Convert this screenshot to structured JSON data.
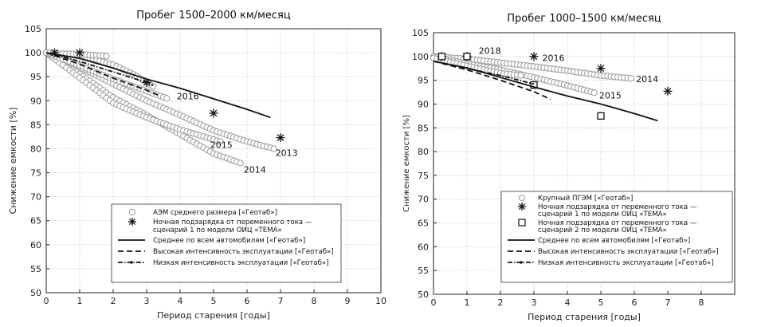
{
  "chart_data": [
    {
      "type": "scatter",
      "title": "Пробег 1500–2000 км/месяц",
      "xlabel": "Период старения [годы]",
      "ylabel": "Снижение емкости [%]",
      "xlim": [
        0,
        10
      ],
      "ylim": [
        50,
        105
      ],
      "xticks": [
        "0",
        "1",
        "2",
        "3",
        "4",
        "5",
        "6",
        "7",
        "8",
        "9",
        "10"
      ],
      "yticks": [
        "50",
        "55",
        "60",
        "65",
        "70",
        "75",
        "80",
        "85",
        "90",
        "95",
        "100",
        "105"
      ],
      "grid": true,
      "legend_position": "bottom-right",
      "legend": [
        {
          "label": "АЭМ среднего размера [«Геотаб»]",
          "marker": "circle"
        },
        {
          "label": "Ночная подзарядка от переменного тока —",
          "marker": "star"
        },
        {
          "label": "сценарий 1 по модели ОИЦ «ТЕМА»",
          "marker": "none"
        },
        {
          "label": "Среднее по всем автомобилям [«Геотаб»]",
          "marker": "solid"
        },
        {
          "label": "Высокая интенсивность эксплуатации [«Геотаб»]",
          "marker": "dash"
        },
        {
          "label": "Низкая интенсивность эксплуатации [«Геотаб»]",
          "marker": "dashdot"
        }
      ],
      "series": [
        {
          "name": "АЭМ среднего размера [«Геотаб»]",
          "style": "circles",
          "tracks": [
            {
              "x": [
                0,
                1.0,
                2.0,
                3.0,
                4.0,
                5.0,
                5.8
              ],
              "y": [
                100,
                95.6,
                90.7,
                87.0,
                83.0,
                79.0,
                77.0
              ]
            },
            {
              "x": [
                0,
                1.0,
                2.0,
                3.0,
                4.0,
                5.0,
                6.0,
                6.8
              ],
              "y": [
                100,
                97.0,
                93.5,
                90.0,
                87.0,
                83.8,
                81.5,
                80.0
              ]
            },
            {
              "x": [
                0,
                1.0,
                2.0,
                3.0,
                4.0,
                5.2
              ],
              "y": [
                100,
                94.8,
                89.5,
                86.5,
                84.0,
                81.5
              ]
            },
            {
              "x": [
                0,
                1.0,
                2.0,
                3.0,
                3.6
              ],
              "y": [
                100,
                97.3,
                94.5,
                92.0,
                90.5
              ]
            },
            {
              "x": [
                0,
                1.0,
                2.0,
                2.6,
                3.2
              ],
              "y": [
                100,
                99.5,
                97.5,
                95.5,
                93.0
              ]
            },
            {
              "x": [
                0.5,
                1.0,
                1.8
              ],
              "y": [
                99.8,
                99.7,
                99.3
              ]
            }
          ]
        },
        {
          "name": "Ночная подзарядка от переменного тока — сценарий 1 по модели ОИЦ «ТЕМА»",
          "style": "stars",
          "x": [
            0.25,
            1,
            3,
            5,
            7
          ],
          "y": [
            100,
            100,
            93.8,
            87.4,
            82.3
          ]
        },
        {
          "name": "Среднее по всем автомобилям [«Геотаб»]",
          "style": "solid",
          "x": [
            0,
            1,
            2,
            3,
            4,
            5,
            6,
            6.7
          ],
          "y": [
            100,
            98.8,
            96.8,
            94.5,
            92.6,
            90.4,
            88.2,
            86.5
          ]
        },
        {
          "name": "Высокая интенсивность эксплуатации [«Геотаб»]",
          "style": "dash",
          "x": [
            0,
            1,
            2,
            3,
            3.4
          ],
          "y": [
            100,
            97.6,
            94.7,
            92.2,
            91.0
          ]
        },
        {
          "name": "Низкая интенсивность эксплуатации [«Геотаб»]",
          "style": "dashdot",
          "x": [
            0,
            1,
            2,
            3,
            3.2
          ],
          "y": [
            100,
            98.2,
            96.0,
            93.8,
            93.2
          ]
        }
      ],
      "annotations": [
        {
          "text": "2016",
          "x": 3.9,
          "y": 91.0
        },
        {
          "text": "2015",
          "x": 4.9,
          "y": 80.8
        },
        {
          "text": "2013",
          "x": 6.85,
          "y": 79.2
        },
        {
          "text": "2014",
          "x": 5.9,
          "y": 75.7
        }
      ]
    },
    {
      "type": "scatter",
      "title": "Пробег 1000–1500  км/месяц",
      "xlabel": "Период старения [годы]",
      "ylabel": "Снижение емкости [%]",
      "xlim": [
        0,
        9
      ],
      "ylim": [
        50,
        105
      ],
      "xticks": [
        "0",
        "1",
        "2",
        "3",
        "4",
        "5",
        "6",
        "7",
        "8"
      ],
      "yticks": [
        "50",
        "55",
        "60",
        "65",
        "70",
        "75",
        "80",
        "85",
        "90",
        "95",
        "100",
        "105"
      ],
      "grid": true,
      "legend_position": "bottom-right",
      "legend": [
        {
          "label": "Крупный ПГЭМ [«Геотаб»]",
          "marker": "circle"
        },
        {
          "label": "Ночная подзарядка от переменного тока —",
          "marker": "star"
        },
        {
          "label": "сценарий 1 по модели ОИЦ «ТЕМА»",
          "marker": "none"
        },
        {
          "label": "Ночная подзарядка от переменного тока —",
          "marker": "square"
        },
        {
          "label": "сценарий 2 по модели ОИЦ «ТЕМА»",
          "marker": "none"
        },
        {
          "label": "Среднее по всем автомобилям [«Геотаб»]",
          "marker": "solid"
        },
        {
          "label": "Высокая интенсивность эксплуатации [«Геотаб»]",
          "marker": "dash"
        },
        {
          "label": "Низкая интенсивность эксплуатации [«Геотаб»]",
          "marker": "dashdot"
        }
      ],
      "series": [
        {
          "name": "Крупный ПГЭМ [«Геотаб»]",
          "style": "circles",
          "tracks": [
            {
              "x": [
                0,
                1.0,
                2.0,
                3.0,
                4.0,
                5.0,
                5.9
              ],
              "y": [
                100,
                99.5,
                98.7,
                97.9,
                97.0,
                96.0,
                95.4
              ]
            },
            {
              "x": [
                0,
                1.0,
                2.0,
                3.0,
                4.0,
                4.8
              ],
              "y": [
                100,
                98.5,
                97.2,
                95.6,
                93.9,
                92.4
              ]
            },
            {
              "x": [
                0,
                1.0,
                2.0,
                2.6
              ],
              "y": [
                99.7,
                98.0,
                96.5,
                96.0
              ]
            }
          ]
        },
        {
          "name": "Ночная подзарядка от переменного тока — сценарий 1 по модели ОИЦ «ТЕМА»",
          "style": "stars",
          "x": [
            0.25,
            1,
            3,
            5,
            7
          ],
          "y": [
            100,
            100,
            100,
            97.5,
            92.7
          ]
        },
        {
          "name": "Ночная подзарядка от переменного тока — сценарий 2 по модели ОИЦ «ТЕМА»",
          "style": "squares",
          "x": [
            0.25,
            1,
            3,
            5
          ],
          "y": [
            100,
            100,
            94,
            87.5
          ]
        },
        {
          "name": "Среднее по всем автомобилям [«Геотаб»]",
          "style": "solid",
          "x": [
            0,
            1,
            2,
            3,
            4,
            5,
            6,
            6.7
          ],
          "y": [
            99,
            97.6,
            95.6,
            93.6,
            91.7,
            90.0,
            88.0,
            86.5
          ]
        },
        {
          "name": "Высокая интенсивность эксплуатации [«Геотаб»]",
          "style": "dash",
          "x": [
            0,
            1,
            2,
            3,
            3.5
          ],
          "y": [
            99,
            97.2,
            95.0,
            92.6,
            91.0
          ]
        },
        {
          "name": "Низкая интенсивность эксплуатации [«Геотаб»]",
          "style": "dashdot",
          "x": [
            0,
            1,
            2,
            3
          ],
          "y": [
            99,
            97.5,
            96.0,
            94.2
          ]
        }
      ],
      "annotations": [
        {
          "text": "2018",
          "x": 1.35,
          "y": 101.2
        },
        {
          "text": "2016",
          "x": 3.25,
          "y": 99.7
        },
        {
          "text": "2014",
          "x": 6.05,
          "y": 95.3
        },
        {
          "text": "2015",
          "x": 4.95,
          "y": 91.8
        }
      ]
    }
  ]
}
